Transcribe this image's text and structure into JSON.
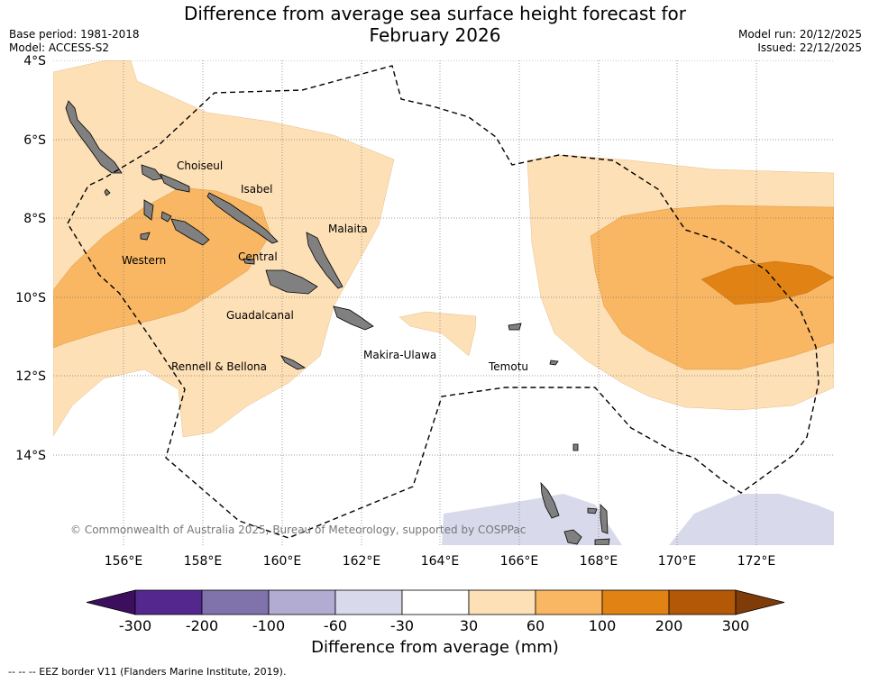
{
  "header": {
    "title_line1": "Difference from average sea surface height forecast for",
    "title_line2": "February 2026",
    "base_period": "Base period: 1981-2018",
    "model": "Model: ACCESS-S2",
    "model_run": "Model run: 20/12/2025",
    "issued": "Issued: 22/12/2025"
  },
  "map": {
    "lat_labels": [
      "4°S",
      "6°S",
      "8°S",
      "10°S",
      "12°S",
      "14°S"
    ],
    "lon_labels": [
      "156°E",
      "158°E",
      "160°E",
      "162°E",
      "164°E",
      "166°E",
      "168°E",
      "170°E",
      "172°E"
    ],
    "provinces": [
      "Choiseul",
      "Isabel",
      "Malaita",
      "Western",
      "Central",
      "Guadalcanal",
      "Makira-Ulawa",
      "Rennell & Bellona",
      "Temotu"
    ],
    "credit": "© Commonwealth of Australia 2025, Bureau of Meteorology, supported by COSPPac"
  },
  "colorbar": {
    "title": "Difference from average (mm)",
    "tick_labels": [
      "-300",
      "-200",
      "-100",
      "-60",
      "-30",
      "30",
      "60",
      "100",
      "200",
      "300"
    ],
    "colors": [
      "#3b0f5e",
      "#54278f",
      "#8073ac",
      "#b2abd2",
      "#d8daeb",
      "#ffffff",
      "#fee0b6",
      "#f9b764",
      "#e08214",
      "#b35806",
      "#7f3b08"
    ]
  },
  "footnote": "--  --  -- EEZ border V11 (Flanders Marine Institute, 2019)."
}
